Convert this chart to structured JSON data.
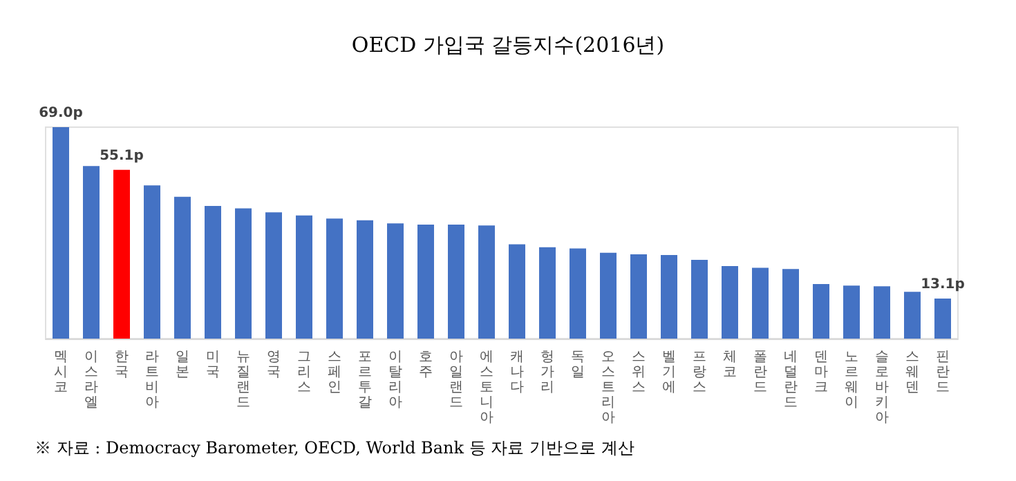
{
  "chart_data": {
    "type": "bar",
    "title": "OECD 가입국 갈등지수(2016년)",
    "categories": [
      "멕시코",
      "이스라엘",
      "한국",
      "라트비아",
      "일본",
      "미국",
      "뉴질랜드",
      "영국",
      "그리스",
      "스페인",
      "포르투갈",
      "이탈리아",
      "호주",
      "아일랜드",
      "에스토니아",
      "캐나다",
      "헝가리",
      "독일",
      "오스트리아",
      "스위스",
      "벨기에",
      "프랑스",
      "체코",
      "폴란드",
      "네덜란드",
      "덴마크",
      "노르웨이",
      "슬로바키아",
      "스웨덴",
      "핀란드"
    ],
    "values": [
      69.0,
      56.3,
      55.1,
      50.0,
      46.3,
      43.3,
      42.5,
      41.2,
      40.2,
      39.2,
      38.6,
      37.6,
      37.2,
      37.2,
      36.9,
      30.8,
      29.8,
      29.4,
      28.0,
      27.5,
      27.3,
      25.7,
      23.7,
      23.1,
      22.7,
      17.8,
      17.3,
      17.1,
      15.3,
      13.1
    ],
    "colors": [
      "#4472c4",
      "#4472c4",
      "#ff0000",
      "#4472c4",
      "#4472c4",
      "#4472c4",
      "#4472c4",
      "#4472c4",
      "#4472c4",
      "#4472c4",
      "#4472c4",
      "#4472c4",
      "#4472c4",
      "#4472c4",
      "#4472c4",
      "#4472c4",
      "#4472c4",
      "#4472c4",
      "#4472c4",
      "#4472c4",
      "#4472c4",
      "#4472c4",
      "#4472c4",
      "#4472c4",
      "#4472c4",
      "#4472c4",
      "#4472c4",
      "#4472c4",
      "#4472c4",
      "#4472c4"
    ],
    "value_labels": [
      "69.0p",
      null,
      "55.1p",
      null,
      null,
      null,
      null,
      null,
      null,
      null,
      null,
      null,
      null,
      null,
      null,
      null,
      null,
      null,
      null,
      null,
      null,
      null,
      null,
      null,
      null,
      null,
      null,
      null,
      null,
      "13.1p"
    ],
    "annotations": [
      "※ 자료 : Democracy Barometer, OECD, World Bank 등 자료 기반으로 계산"
    ],
    "grid": false
  }
}
